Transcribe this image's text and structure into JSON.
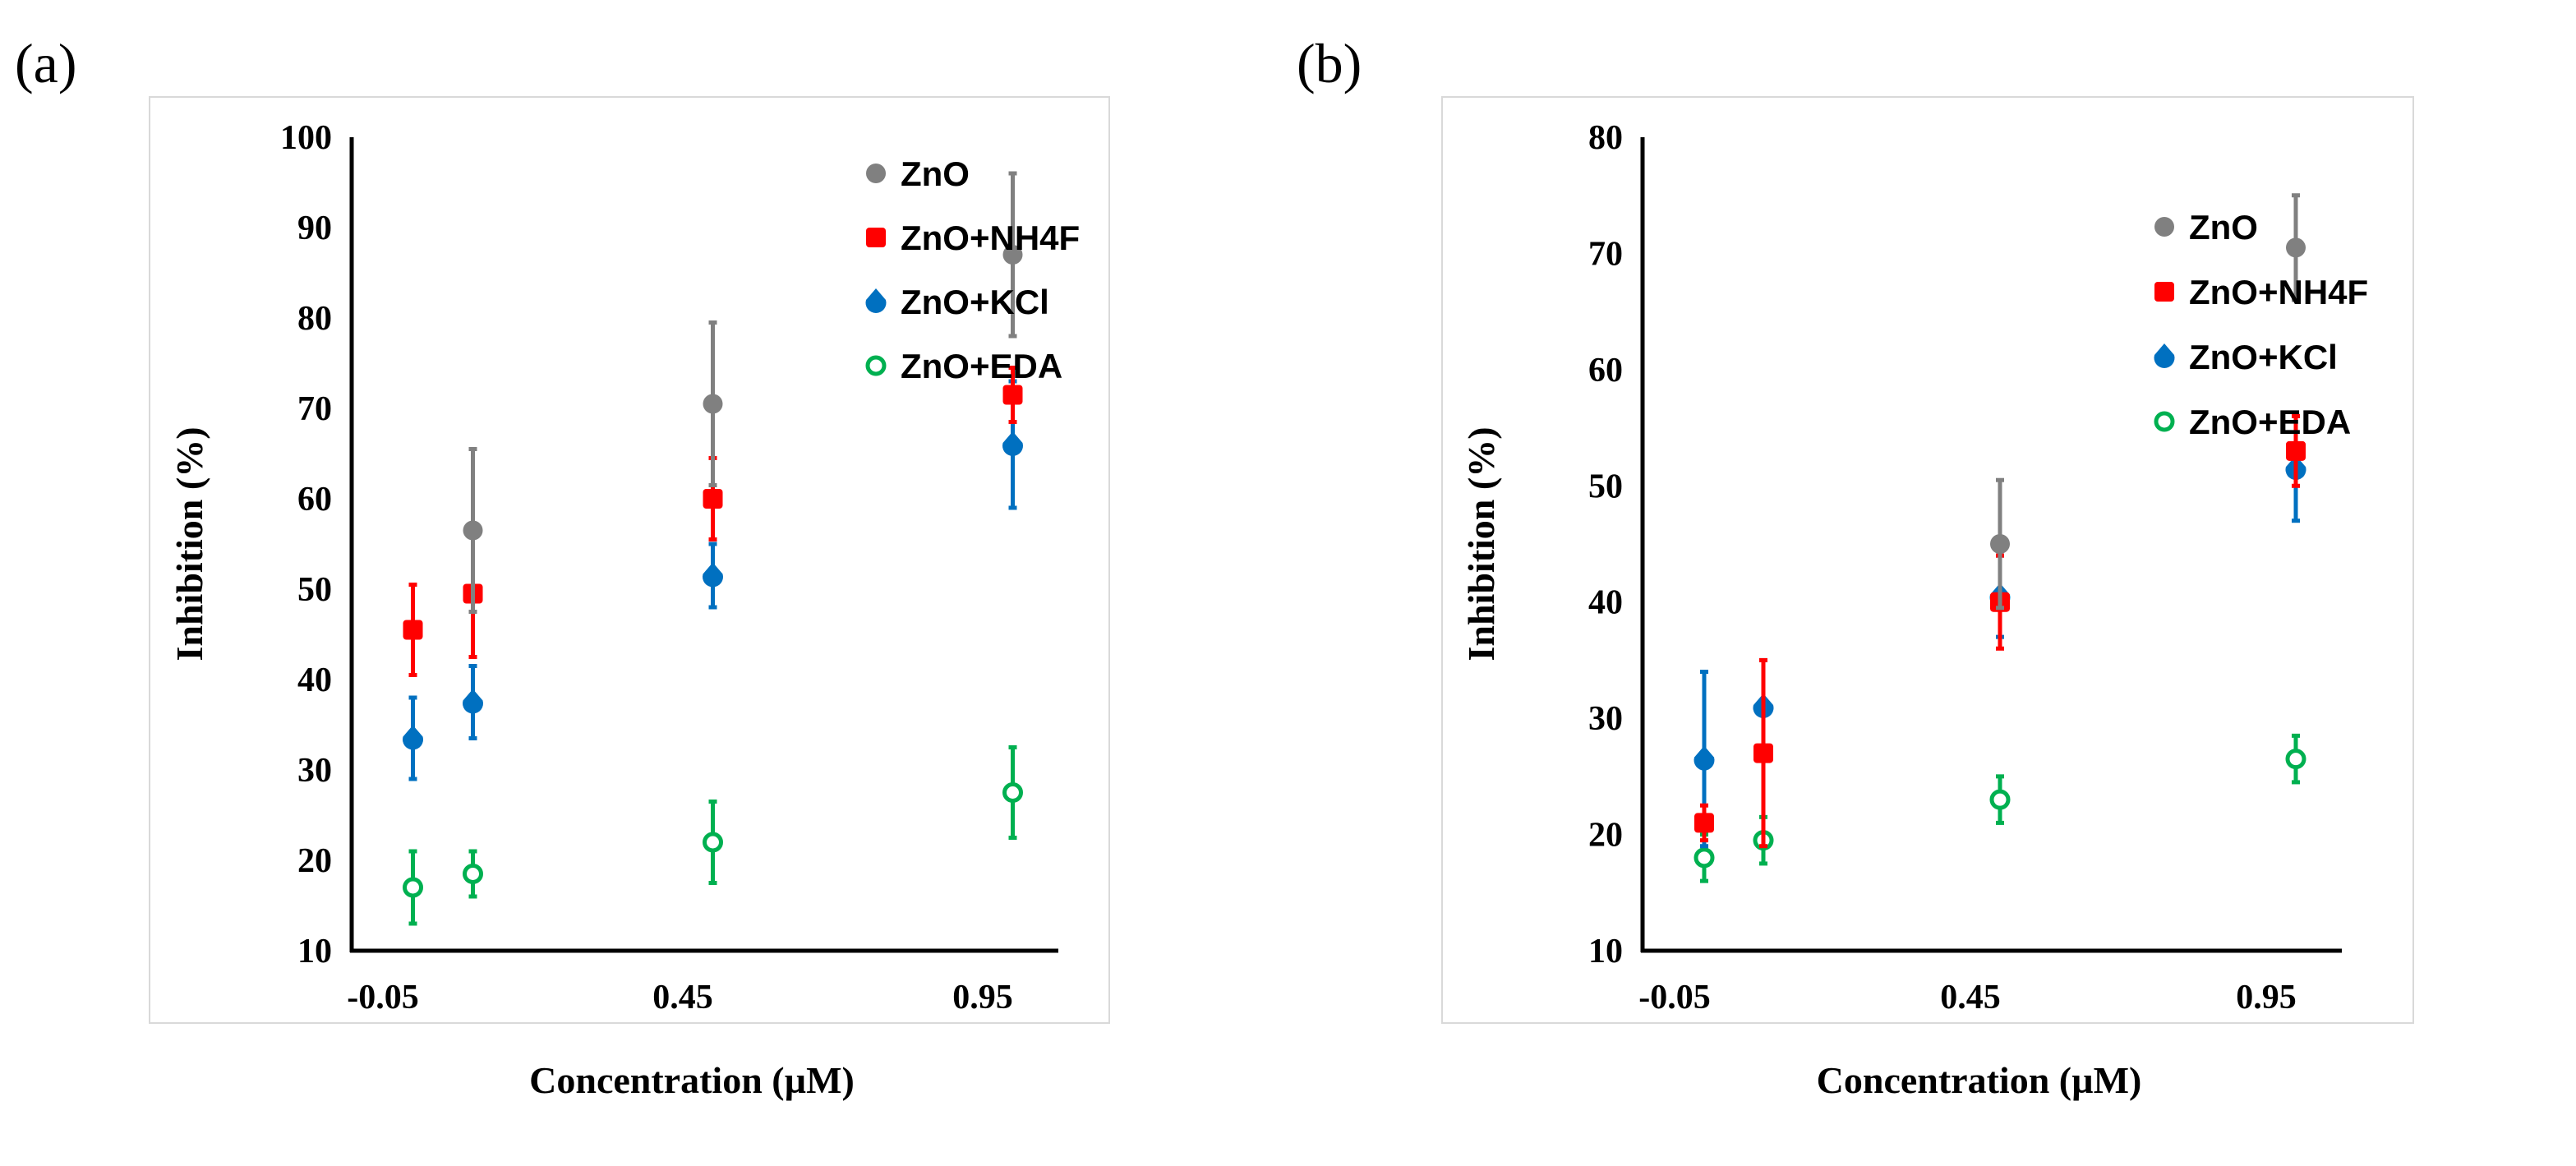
{
  "figure": {
    "panel_labels": [
      "(a)",
      "(b)"
    ]
  },
  "colors": {
    "ZnO": "#808080",
    "ZnO+NH4F": "#ff0000",
    "ZnO+KCl": "#0070c0",
    "ZnO+EDA": "#00b050"
  },
  "chart_data": [
    {
      "type": "scatter",
      "panel": "(a)",
      "title": "",
      "xlabel": "Concentration (µM)",
      "ylabel": "Inhibition (%)",
      "xlim": [
        -0.05,
        1.05
      ],
      "ylim": [
        10,
        100
      ],
      "xticks": [
        -0.05,
        0.45,
        0.95
      ],
      "xtick_labels": [
        "-0.05",
        "0.45",
        "0.95"
      ],
      "yticks": [
        10,
        20,
        30,
        40,
        50,
        60,
        70,
        80,
        90,
        100
      ],
      "ytick_labels": [
        "10",
        "20",
        "30",
        "40",
        "50",
        "60",
        "70",
        "80",
        "90",
        "100"
      ],
      "legend_position": "top-right",
      "series": [
        {
          "name": "ZnO",
          "marker": "circle",
          "x": [
            0.1,
            0.5,
            1.0
          ],
          "y": [
            56.5,
            70.5,
            87
          ],
          "err": [
            9,
            9,
            9
          ]
        },
        {
          "name": "ZnO+NH4F",
          "marker": "square",
          "x": [
            0,
            0.1,
            0.5,
            1.0
          ],
          "y": [
            45.5,
            49.5,
            60,
            71.5
          ],
          "err": [
            5,
            7,
            4.5,
            3
          ]
        },
        {
          "name": "ZnO+KCl",
          "marker": "drop",
          "x": [
            0,
            0.1,
            0.5,
            1.0
          ],
          "y": [
            33.5,
            37.5,
            51.5,
            66
          ],
          "err": [
            4.5,
            4,
            3.5,
            7
          ]
        },
        {
          "name": "ZnO+EDA",
          "marker": "ring",
          "x": [
            0,
            0.1,
            0.5,
            1.0
          ],
          "y": [
            17,
            18.5,
            22,
            27.5
          ],
          "err": [
            4,
            2.5,
            4.5,
            5
          ]
        }
      ]
    },
    {
      "type": "scatter",
      "panel": "(b)",
      "title": "",
      "xlabel": "Concentration (µM)",
      "ylabel": "Inhibition (%)",
      "xlim": [
        -0.05,
        1.05
      ],
      "ylim": [
        10,
        80
      ],
      "xticks": [
        -0.05,
        0.45,
        0.95
      ],
      "xtick_labels": [
        "-0.05",
        "0.45",
        "0.95"
      ],
      "yticks": [
        10,
        20,
        30,
        40,
        50,
        60,
        70,
        80
      ],
      "ytick_labels": [
        "10",
        "20",
        "30",
        "40",
        "50",
        "60",
        "70",
        "80"
      ],
      "legend_position": "top-right",
      "series": [
        {
          "name": "ZnO",
          "marker": "circle",
          "x": [
            0.5,
            1.0
          ],
          "y": [
            45,
            70.5
          ],
          "err": [
            5.5,
            4.5
          ]
        },
        {
          "name": "ZnO+NH4F",
          "marker": "square",
          "x": [
            0,
            0.1,
            0.5,
            1.0
          ],
          "y": [
            21,
            27,
            40,
            53
          ],
          "err": [
            1.5,
            8,
            4,
            3
          ]
        },
        {
          "name": "ZnO+KCl",
          "marker": "drop",
          "x": [
            0,
            0.1,
            0.5,
            1.0
          ],
          "y": [
            26.5,
            31,
            40.5,
            51.5
          ],
          "err": [
            7.5,
            4,
            3.5,
            4.5
          ]
        },
        {
          "name": "ZnO+EDA",
          "marker": "ring",
          "x": [
            0,
            0.1,
            0.5,
            1.0
          ],
          "y": [
            18,
            19.5,
            23,
            26.5
          ],
          "err": [
            2,
            2,
            2,
            2
          ]
        }
      ]
    }
  ]
}
